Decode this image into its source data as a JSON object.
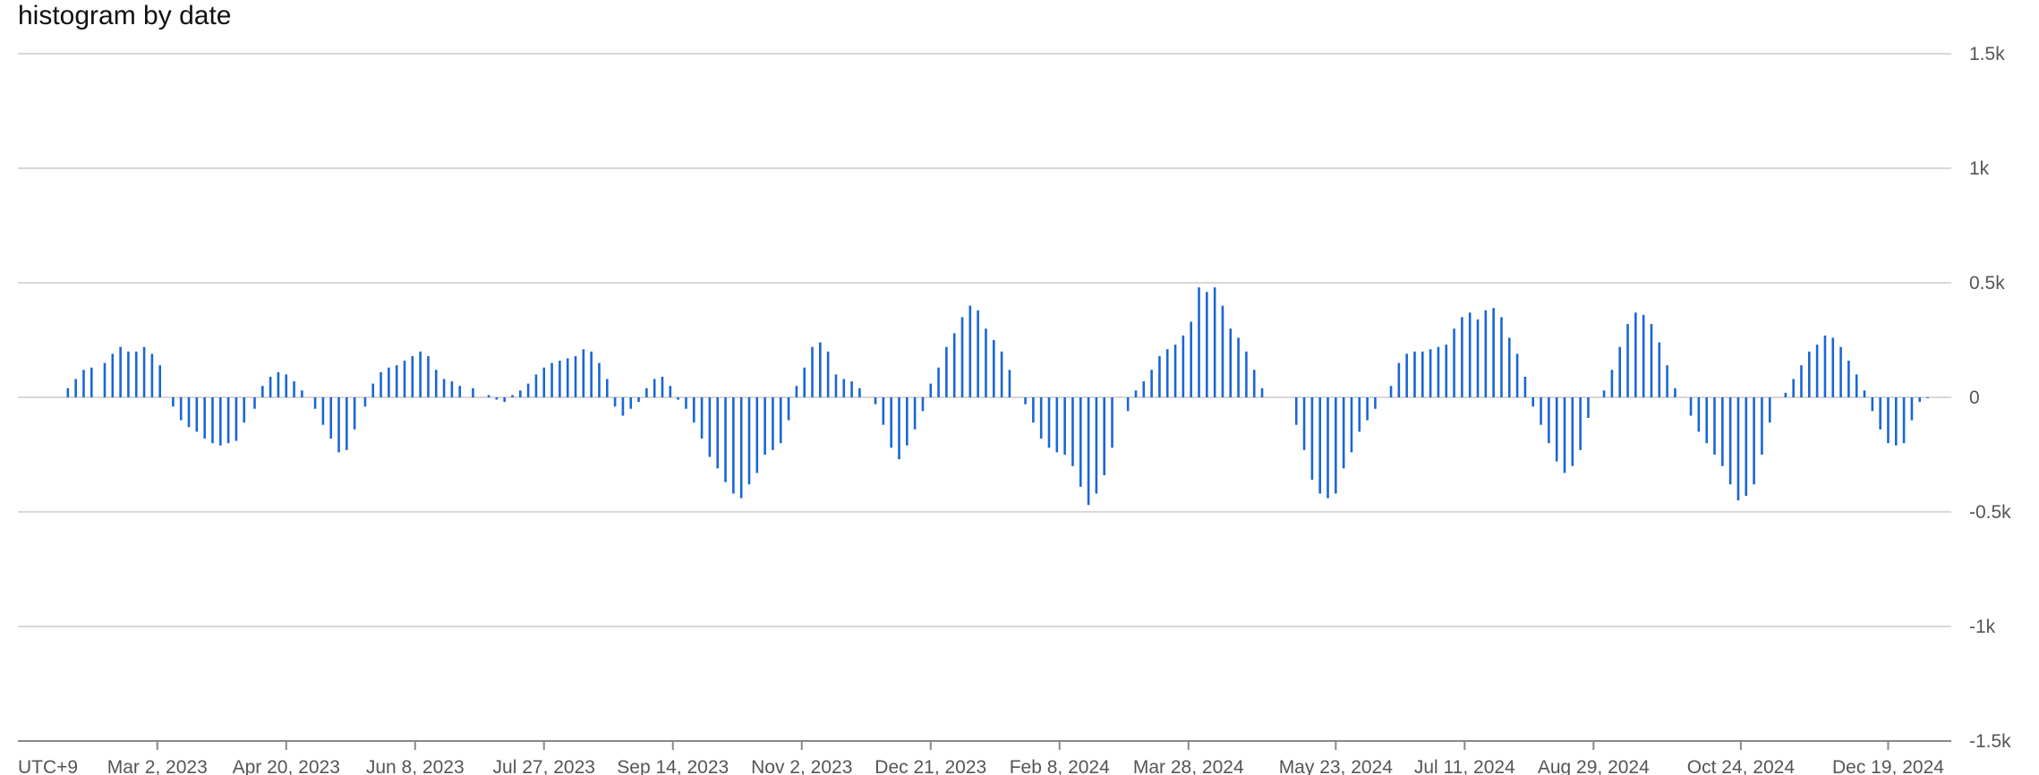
{
  "chart_data": {
    "type": "bar",
    "title": "histogram by date",
    "xlabel": "",
    "ylabel": "",
    "timezone_label": "UTC+9",
    "x_range": [
      "2023-01-08",
      "2025-01-12"
    ],
    "ylim": [
      -1500,
      1500
    ],
    "y_ticks": [
      {
        "value": 1500,
        "label": "1.5k"
      },
      {
        "value": 1000,
        "label": "1k"
      },
      {
        "value": 500,
        "label": "0.5k"
      },
      {
        "value": 0,
        "label": "0"
      },
      {
        "value": -500,
        "label": "-0.5k"
      },
      {
        "value": -1000,
        "label": "-1k"
      },
      {
        "value": -1500,
        "label": "-1.5k"
      }
    ],
    "x_ticks": [
      {
        "date": "2023-03-02",
        "label": "Mar 2, 2023"
      },
      {
        "date": "2023-04-20",
        "label": "Apr 20, 2023"
      },
      {
        "date": "2023-06-08",
        "label": "Jun 8, 2023"
      },
      {
        "date": "2023-07-27",
        "label": "Jul 27, 2023"
      },
      {
        "date": "2023-09-14",
        "label": "Sep 14, 2023"
      },
      {
        "date": "2023-11-02",
        "label": "Nov 2, 2023"
      },
      {
        "date": "2023-12-21",
        "label": "Dec 21, 2023"
      },
      {
        "date": "2024-02-08",
        "label": "Feb 8, 2024"
      },
      {
        "date": "2024-03-28",
        "label": "Mar 28, 2024"
      },
      {
        "date": "2024-05-23",
        "label": "May 23, 2024"
      },
      {
        "date": "2024-07-11",
        "label": "Jul 11, 2024"
      },
      {
        "date": "2024-08-29",
        "label": "Aug 29, 2024"
      },
      {
        "date": "2024-10-24",
        "label": "Oct 24, 2024"
      },
      {
        "date": "2024-12-19",
        "label": "Dec 19, 2024"
      }
    ],
    "grid": true,
    "legend": false,
    "colors": {
      "bar": "#1a66d6",
      "grid": "#cccccc",
      "axis": "#888888"
    },
    "points": [
      [
        "2023-01-27",
        40
      ],
      [
        "2023-01-30",
        80
      ],
      [
        "2023-02-02",
        120
      ],
      [
        "2023-02-05",
        130
      ],
      [
        "2023-02-10",
        150
      ],
      [
        "2023-02-13",
        190
      ],
      [
        "2023-02-16",
        220
      ],
      [
        "2023-02-19",
        200
      ],
      [
        "2023-02-22",
        200
      ],
      [
        "2023-02-25",
        220
      ],
      [
        "2023-02-28",
        190
      ],
      [
        "2023-03-03",
        140
      ],
      [
        "2023-03-08",
        -40
      ],
      [
        "2023-03-11",
        -100
      ],
      [
        "2023-03-14",
        -130
      ],
      [
        "2023-03-17",
        -150
      ],
      [
        "2023-03-20",
        -180
      ],
      [
        "2023-03-23",
        -200
      ],
      [
        "2023-03-26",
        -210
      ],
      [
        "2023-03-29",
        -200
      ],
      [
        "2023-04-01",
        -190
      ],
      [
        "2023-04-04",
        -110
      ],
      [
        "2023-04-08",
        -50
      ],
      [
        "2023-04-11",
        50
      ],
      [
        "2023-04-14",
        90
      ],
      [
        "2023-04-17",
        110
      ],
      [
        "2023-04-20",
        100
      ],
      [
        "2023-04-23",
        70
      ],
      [
        "2023-04-26",
        30
      ],
      [
        "2023-05-01",
        -50
      ],
      [
        "2023-05-04",
        -120
      ],
      [
        "2023-05-07",
        -180
      ],
      [
        "2023-05-10",
        -240
      ],
      [
        "2023-05-13",
        -230
      ],
      [
        "2023-05-16",
        -140
      ],
      [
        "2023-05-20",
        -40
      ],
      [
        "2023-05-23",
        60
      ],
      [
        "2023-05-26",
        110
      ],
      [
        "2023-05-29",
        130
      ],
      [
        "2023-06-01",
        140
      ],
      [
        "2023-06-04",
        160
      ],
      [
        "2023-06-07",
        180
      ],
      [
        "2023-06-10",
        200
      ],
      [
        "2023-06-13",
        180
      ],
      [
        "2023-06-16",
        120
      ],
      [
        "2023-06-19",
        80
      ],
      [
        "2023-06-22",
        70
      ],
      [
        "2023-06-25",
        50
      ],
      [
        "2023-06-30",
        40
      ],
      [
        "2023-07-06",
        10
      ],
      [
        "2023-07-09",
        -10
      ],
      [
        "2023-07-12",
        -20
      ],
      [
        "2023-07-15",
        10
      ],
      [
        "2023-07-18",
        30
      ],
      [
        "2023-07-21",
        60
      ],
      [
        "2023-07-24",
        100
      ],
      [
        "2023-07-27",
        130
      ],
      [
        "2023-07-30",
        150
      ],
      [
        "2023-08-02",
        160
      ],
      [
        "2023-08-05",
        170
      ],
      [
        "2023-08-08",
        180
      ],
      [
        "2023-08-11",
        210
      ],
      [
        "2023-08-14",
        200
      ],
      [
        "2023-08-17",
        150
      ],
      [
        "2023-08-20",
        80
      ],
      [
        "2023-08-23",
        -40
      ],
      [
        "2023-08-26",
        -80
      ],
      [
        "2023-08-29",
        -50
      ],
      [
        "2023-09-01",
        -20
      ],
      [
        "2023-09-04",
        40
      ],
      [
        "2023-09-07",
        80
      ],
      [
        "2023-09-10",
        90
      ],
      [
        "2023-09-13",
        50
      ],
      [
        "2023-09-16",
        -10
      ],
      [
        "2023-09-19",
        -50
      ],
      [
        "2023-09-22",
        -110
      ],
      [
        "2023-09-25",
        -180
      ],
      [
        "2023-09-28",
        -260
      ],
      [
        "2023-10-01",
        -310
      ],
      [
        "2023-10-04",
        -370
      ],
      [
        "2023-10-07",
        -420
      ],
      [
        "2023-10-10",
        -440
      ],
      [
        "2023-10-13",
        -380
      ],
      [
        "2023-10-16",
        -330
      ],
      [
        "2023-10-19",
        -250
      ],
      [
        "2023-10-22",
        -230
      ],
      [
        "2023-10-25",
        -200
      ],
      [
        "2023-10-28",
        -100
      ],
      [
        "2023-10-31",
        50
      ],
      [
        "2023-11-03",
        130
      ],
      [
        "2023-11-06",
        220
      ],
      [
        "2023-11-09",
        240
      ],
      [
        "2023-11-12",
        200
      ],
      [
        "2023-11-15",
        100
      ],
      [
        "2023-11-18",
        80
      ],
      [
        "2023-11-21",
        70
      ],
      [
        "2023-11-24",
        40
      ],
      [
        "2023-11-30",
        -30
      ],
      [
        "2023-12-03",
        -120
      ],
      [
        "2023-12-06",
        -220
      ],
      [
        "2023-12-09",
        -270
      ],
      [
        "2023-12-12",
        -210
      ],
      [
        "2023-12-15",
        -140
      ],
      [
        "2023-12-18",
        -60
      ],
      [
        "2023-12-21",
        60
      ],
      [
        "2023-12-24",
        130
      ],
      [
        "2023-12-27",
        220
      ],
      [
        "2023-12-30",
        280
      ],
      [
        "2024-01-02",
        350
      ],
      [
        "2024-01-05",
        400
      ],
      [
        "2024-01-08",
        380
      ],
      [
        "2024-01-11",
        300
      ],
      [
        "2024-01-14",
        250
      ],
      [
        "2024-01-17",
        200
      ],
      [
        "2024-01-20",
        120
      ],
      [
        "2024-01-26",
        -30
      ],
      [
        "2024-01-29",
        -110
      ],
      [
        "2024-02-01",
        -180
      ],
      [
        "2024-02-04",
        -220
      ],
      [
        "2024-02-07",
        -240
      ],
      [
        "2024-02-10",
        -250
      ],
      [
        "2024-02-13",
        -300
      ],
      [
        "2024-02-16",
        -390
      ],
      [
        "2024-02-19",
        -470
      ],
      [
        "2024-02-22",
        -420
      ],
      [
        "2024-02-25",
        -340
      ],
      [
        "2024-02-28",
        -220
      ],
      [
        "2024-03-05",
        -60
      ],
      [
        "2024-03-08",
        30
      ],
      [
        "2024-03-11",
        70
      ],
      [
        "2024-03-14",
        120
      ],
      [
        "2024-03-17",
        180
      ],
      [
        "2024-03-20",
        210
      ],
      [
        "2024-03-23",
        230
      ],
      [
        "2024-03-26",
        270
      ],
      [
        "2024-03-29",
        330
      ],
      [
        "2024-04-01",
        480
      ],
      [
        "2024-04-04",
        460
      ],
      [
        "2024-04-07",
        480
      ],
      [
        "2024-04-10",
        400
      ],
      [
        "2024-04-13",
        300
      ],
      [
        "2024-04-16",
        260
      ],
      [
        "2024-04-19",
        200
      ],
      [
        "2024-04-22",
        120
      ],
      [
        "2024-04-25",
        40
      ],
      [
        "2024-05-08",
        -120
      ],
      [
        "2024-05-11",
        -230
      ],
      [
        "2024-05-14",
        -360
      ],
      [
        "2024-05-17",
        -420
      ],
      [
        "2024-05-20",
        -440
      ],
      [
        "2024-05-23",
        -420
      ],
      [
        "2024-05-26",
        -310
      ],
      [
        "2024-05-29",
        -240
      ],
      [
        "2024-06-01",
        -150
      ],
      [
        "2024-06-04",
        -100
      ],
      [
        "2024-06-07",
        -50
      ],
      [
        "2024-06-13",
        50
      ],
      [
        "2024-06-16",
        150
      ],
      [
        "2024-06-19",
        190
      ],
      [
        "2024-06-22",
        200
      ],
      [
        "2024-06-25",
        200
      ],
      [
        "2024-06-28",
        210
      ],
      [
        "2024-07-01",
        220
      ],
      [
        "2024-07-04",
        230
      ],
      [
        "2024-07-07",
        300
      ],
      [
        "2024-07-10",
        350
      ],
      [
        "2024-07-13",
        370
      ],
      [
        "2024-07-16",
        340
      ],
      [
        "2024-07-19",
        380
      ],
      [
        "2024-07-22",
        390
      ],
      [
        "2024-07-25",
        350
      ],
      [
        "2024-07-28",
        260
      ],
      [
        "2024-07-31",
        190
      ],
      [
        "2024-08-03",
        90
      ],
      [
        "2024-08-06",
        -40
      ],
      [
        "2024-08-09",
        -120
      ],
      [
        "2024-08-12",
        -200
      ],
      [
        "2024-08-15",
        -280
      ],
      [
        "2024-08-18",
        -330
      ],
      [
        "2024-08-21",
        -300
      ],
      [
        "2024-08-24",
        -230
      ],
      [
        "2024-08-27",
        -90
      ],
      [
        "2024-09-02",
        30
      ],
      [
        "2024-09-05",
        120
      ],
      [
        "2024-09-08",
        220
      ],
      [
        "2024-09-11",
        320
      ],
      [
        "2024-09-14",
        370
      ],
      [
        "2024-09-17",
        360
      ],
      [
        "2024-09-20",
        320
      ],
      [
        "2024-09-23",
        240
      ],
      [
        "2024-09-26",
        140
      ],
      [
        "2024-09-29",
        40
      ],
      [
        "2024-10-05",
        -80
      ],
      [
        "2024-10-08",
        -150
      ],
      [
        "2024-10-11",
        -200
      ],
      [
        "2024-10-14",
        -250
      ],
      [
        "2024-10-17",
        -300
      ],
      [
        "2024-10-20",
        -380
      ],
      [
        "2024-10-23",
        -450
      ],
      [
        "2024-10-26",
        -430
      ],
      [
        "2024-10-29",
        -380
      ],
      [
        "2024-11-01",
        -250
      ],
      [
        "2024-11-04",
        -110
      ],
      [
        "2024-11-10",
        20
      ],
      [
        "2024-11-13",
        80
      ],
      [
        "2024-11-16",
        140
      ],
      [
        "2024-11-19",
        200
      ],
      [
        "2024-11-22",
        230
      ],
      [
        "2024-11-25",
        270
      ],
      [
        "2024-11-28",
        260
      ],
      [
        "2024-12-01",
        220
      ],
      [
        "2024-12-04",
        160
      ],
      [
        "2024-12-07",
        100
      ],
      [
        "2024-12-10",
        30
      ],
      [
        "2024-12-13",
        -60
      ],
      [
        "2024-12-16",
        -140
      ],
      [
        "2024-12-19",
        -200
      ],
      [
        "2024-12-22",
        -210
      ],
      [
        "2024-12-25",
        -200
      ],
      [
        "2024-12-28",
        -100
      ],
      [
        "2024-12-31",
        -20
      ],
      [
        "2025-01-03",
        0
      ]
    ]
  }
}
